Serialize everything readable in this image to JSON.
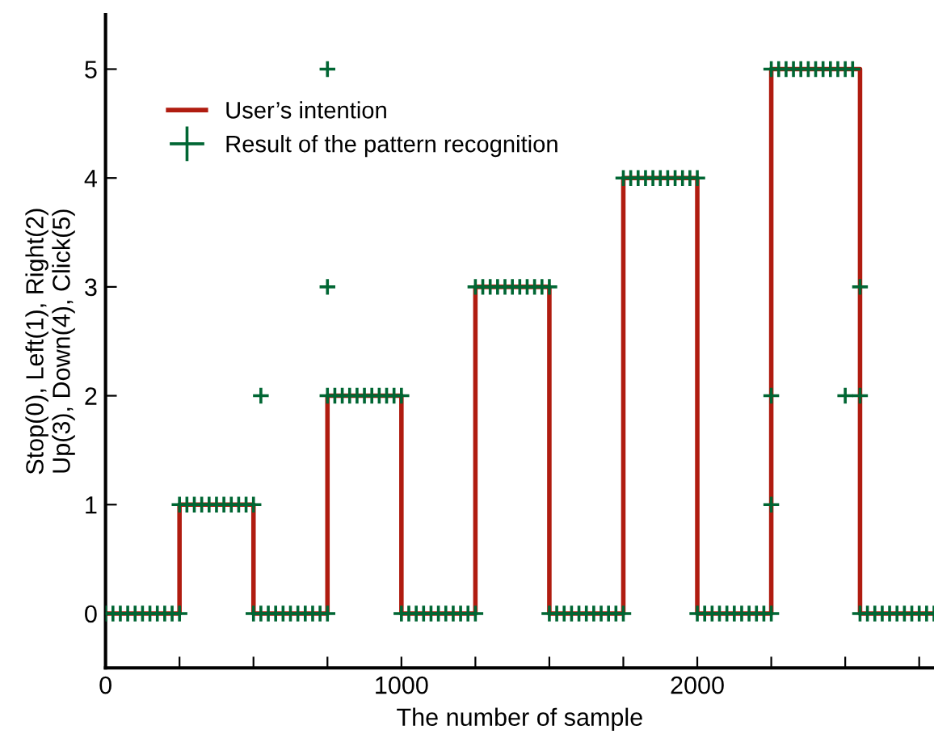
{
  "chart_data": {
    "type": "line",
    "xlabel": "The number of sample",
    "ylabel": "Stop(0), Left(1), Right(2)\nUp(3), Down(4), Click(5)",
    "xlim": [
      0,
      2800
    ],
    "ylim": [
      -0.5,
      5.5
    ],
    "xticks": [
      0,
      {
        "value": 250,
        "label": null
      },
      {
        "value": 500,
        "label": null
      },
      {
        "value": 750,
        "label": null
      },
      1000,
      {
        "value": 1250,
        "label": null
      },
      {
        "value": 1500,
        "label": null
      },
      {
        "value": 1750,
        "label": null
      },
      2000,
      {
        "value": 2250,
        "label": null
      },
      {
        "value": 2500,
        "label": null
      },
      {
        "value": 2750,
        "label": null
      }
    ],
    "yticks": [
      0,
      1,
      2,
      3,
      4,
      5
    ],
    "grid": false,
    "legend": "top left",
    "series": [
      {
        "name": "User’s intention",
        "color": "#b01c10",
        "marker": "none",
        "line_style": "solid",
        "x": [
          0,
          250,
          250,
          500,
          500,
          750,
          750,
          1000,
          1000,
          1250,
          1250,
          1500,
          1500,
          1750,
          1750,
          2000,
          2000,
          2250,
          2250,
          2550,
          2550,
          2800
        ],
        "values": [
          0,
          0,
          1,
          1,
          0,
          0,
          2,
          2,
          0,
          0,
          3,
          3,
          0,
          0,
          4,
          4,
          0,
          0,
          5,
          5,
          0,
          0
        ]
      },
      {
        "name": "Result of the pattern recognition",
        "type": "scatter",
        "color": "#006633",
        "marker": "cross",
        "x": [
          0,
          25,
          50,
          75,
          100,
          125,
          150,
          175,
          200,
          225,
          250,
          275,
          300,
          325,
          350,
          375,
          400,
          425,
          450,
          475,
          500,
          525,
          550,
          575,
          600,
          625,
          650,
          675,
          700,
          725,
          750,
          775,
          800,
          825,
          850,
          875,
          900,
          925,
          950,
          975,
          1000,
          1025,
          1050,
          1075,
          1100,
          1125,
          1150,
          1175,
          1200,
          1225,
          1250,
          1275,
          1300,
          1325,
          1350,
          1375,
          1400,
          1425,
          1450,
          1475,
          1500,
          1525,
          1550,
          1575,
          1600,
          1625,
          1650,
          1675,
          1700,
          1725,
          1750,
          1775,
          1800,
          1825,
          1850,
          1875,
          1900,
          1925,
          1950,
          1975,
          2000,
          2025,
          2050,
          2075,
          2100,
          2125,
          2150,
          2175,
          2200,
          2225,
          2250,
          2275,
          2300,
          2325,
          2350,
          2375,
          2400,
          2425,
          2450,
          2475,
          2500,
          2525,
          2550,
          2575,
          2600,
          2625,
          2650,
          2675,
          2700,
          2725,
          2750,
          2775,
          2800,
          525,
          750,
          750,
          2250,
          2250,
          2500,
          2550,
          2550,
          250,
          500,
          750,
          1000,
          1250,
          1500,
          1750,
          2000,
          2250
        ],
        "values": [
          0,
          0,
          0,
          0,
          0,
          0,
          0,
          0,
          0,
          0,
          1,
          1,
          1,
          1,
          1,
          1,
          1,
          1,
          1,
          1,
          0,
          0,
          0,
          0,
          0,
          0,
          0,
          0,
          0,
          0,
          2,
          2,
          2,
          2,
          2,
          2,
          2,
          2,
          2,
          2,
          0,
          0,
          0,
          0,
          0,
          0,
          0,
          0,
          0,
          0,
          3,
          3,
          3,
          3,
          3,
          3,
          3,
          3,
          3,
          3,
          0,
          0,
          0,
          0,
          0,
          0,
          0,
          0,
          0,
          0,
          4,
          4,
          4,
          4,
          4,
          4,
          4,
          4,
          4,
          4,
          0,
          0,
          0,
          0,
          0,
          0,
          0,
          0,
          0,
          0,
          5,
          5,
          5,
          5,
          5,
          5,
          5,
          5,
          5,
          5,
          5,
          5,
          0,
          0,
          0,
          0,
          0,
          0,
          0,
          0,
          0,
          0,
          0,
          2,
          5,
          3,
          2,
          1,
          2,
          3,
          2,
          0,
          1,
          0,
          2,
          0,
          3,
          0,
          4,
          0
        ]
      }
    ]
  }
}
